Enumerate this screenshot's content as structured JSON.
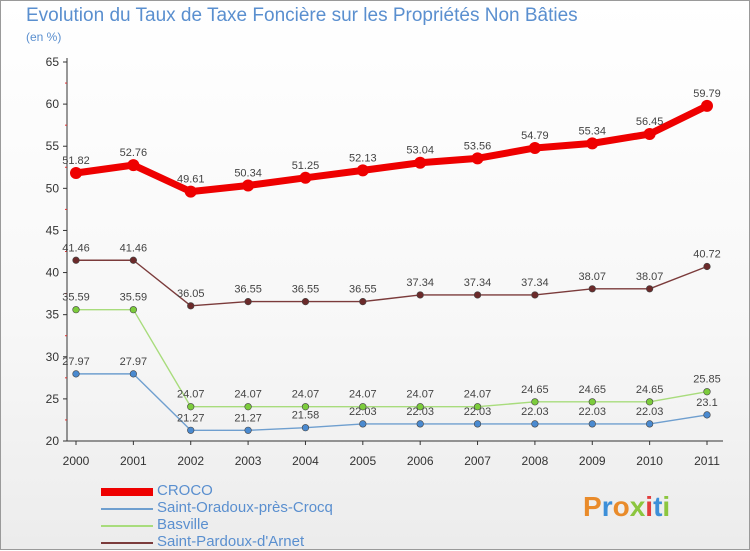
{
  "title": "Evolution du Taux de Taxe Foncière sur les Propriétés Non Bâties",
  "subtitle": "(en %)",
  "brand_logo": "Proxiti",
  "chart_data": {
    "type": "line",
    "x": [
      "2000",
      "2001",
      "2002",
      "2003",
      "2004",
      "2005",
      "2006",
      "2007",
      "2008",
      "2009",
      "2010",
      "2011"
    ],
    "ylim": [
      20,
      65
    ],
    "yticks": [
      "20",
      "25",
      "30",
      "35",
      "40",
      "45",
      "50",
      "55",
      "60",
      "65"
    ],
    "grid": false,
    "legend_position": "bottom-left",
    "series": [
      {
        "name": "CROCO",
        "color": "#ee0000",
        "bold": true,
        "values": [
          51.82,
          52.76,
          49.61,
          50.34,
          51.25,
          52.13,
          53.04,
          53.56,
          54.79,
          55.34,
          56.45,
          59.79
        ],
        "labels": [
          "51.82",
          "52.76",
          "49.61",
          "50.34",
          "51.25",
          "52.13",
          "53.04",
          "53.56",
          "54.79",
          "55.34",
          "56.45",
          "59.79"
        ]
      },
      {
        "name": "Saint-Oradoux-près-Crocq",
        "color": "#6f9fcf",
        "marker": "#4a8ad0",
        "values": [
          27.97,
          27.97,
          21.27,
          21.27,
          21.58,
          22.03,
          22.03,
          22.03,
          22.03,
          22.03,
          22.03,
          23.1
        ],
        "labels": [
          "27.97",
          "27.97",
          "21.27",
          "21.27",
          "21.58",
          "22.03",
          "22.03",
          "22.03",
          "22.03",
          "22.03",
          "22.03",
          "23.1"
        ]
      },
      {
        "name": "Basville",
        "color": "#a8dc7c",
        "marker": "#7ccc3c",
        "values": [
          35.59,
          35.59,
          24.07,
          24.07,
          24.07,
          24.07,
          24.07,
          24.07,
          24.65,
          24.65,
          24.65,
          25.85
        ],
        "labels": [
          "35.59",
          "35.59",
          "24.07",
          "24.07",
          "24.07",
          "24.07",
          "24.07",
          "24.07",
          "24.65",
          "24.65",
          "24.65",
          "25.85"
        ]
      },
      {
        "name": "Saint-Pardoux-d'Arnet",
        "color": "#7b3b3b",
        "marker": "#6b2a2a",
        "values": [
          41.46,
          41.46,
          36.05,
          36.55,
          36.55,
          36.55,
          37.34,
          37.34,
          37.34,
          38.07,
          38.07,
          40.72
        ],
        "labels": [
          "41.46",
          "41.46",
          "36.05",
          "36.55",
          "36.55",
          "36.55",
          "37.34",
          "37.34",
          "37.34",
          "38.07",
          "38.07",
          "40.72"
        ]
      }
    ]
  }
}
